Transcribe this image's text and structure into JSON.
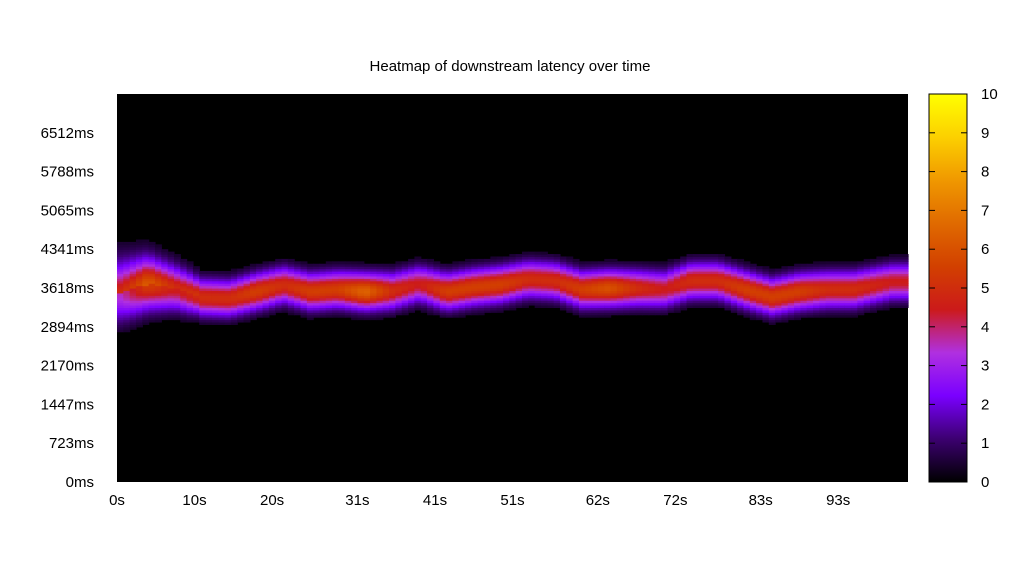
{
  "chart_data": {
    "type": "heatmap",
    "title": "Heatmap of downstream latency over time",
    "xlabel": "",
    "ylabel": "",
    "x_tick_labels": [
      "0s",
      "10s",
      "20s",
      "31s",
      "41s",
      "51s",
      "62s",
      "72s",
      "83s",
      "93s"
    ],
    "x_tick_values": [
      0,
      10,
      20,
      31,
      41,
      51,
      62,
      72,
      83,
      93
    ],
    "xlim": [
      0,
      102
    ],
    "y_tick_labels": [
      "0ms",
      "723ms",
      "1447ms",
      "2170ms",
      "2894ms",
      "3618ms",
      "4341ms",
      "5065ms",
      "5788ms",
      "6512ms"
    ],
    "y_tick_values": [
      0,
      723,
      1447,
      2170,
      2894,
      3618,
      4341,
      5065,
      5788,
      6512
    ],
    "ylim": [
      0,
      7235
    ],
    "colorbar": {
      "min": 0,
      "max": 10,
      "tick_labels": [
        "0",
        "1",
        "2",
        "3",
        "4",
        "5",
        "6",
        "7",
        "8",
        "9",
        "10"
      ],
      "palette": [
        "#000000",
        "#3c0070",
        "#7a00ff",
        "#b030e0",
        "#cc1a1a",
        "#d24000",
        "#e06a00",
        "#f09800",
        "#fcd000",
        "#ffff00"
      ]
    },
    "background_color": "#000000",
    "latency_band": {
      "center_ms": [
        3540,
        3700,
        3620,
        3450,
        3430,
        3560,
        3680,
        3560,
        3600,
        3560,
        3570,
        3700,
        3560,
        3640,
        3690,
        3790,
        3760,
        3600,
        3620,
        3620,
        3600,
        3760,
        3760,
        3600,
        3460,
        3560,
        3600,
        3600,
        3740
      ],
      "x_s": [
        0.5,
        4,
        7.5,
        11,
        14.5,
        18,
        21.5,
        25,
        28.5,
        32,
        35.5,
        39,
        42.5,
        46,
        49.5,
        53,
        56.5,
        60,
        63.5,
        67,
        70.5,
        74,
        77.5,
        81,
        84.5,
        88,
        91.5,
        95,
        100
      ],
      "peak_intensity": [
        3.5,
        5.5,
        4.5,
        5,
        5,
        5.5,
        5,
        5.5,
        5.5,
        6.5,
        5,
        4.5,
        5.5,
        5.5,
        5.5,
        5,
        5,
        5.5,
        6,
        5,
        4.5,
        5,
        5,
        5.5,
        5.5,
        5.5,
        5,
        5,
        4.5
      ]
    }
  }
}
